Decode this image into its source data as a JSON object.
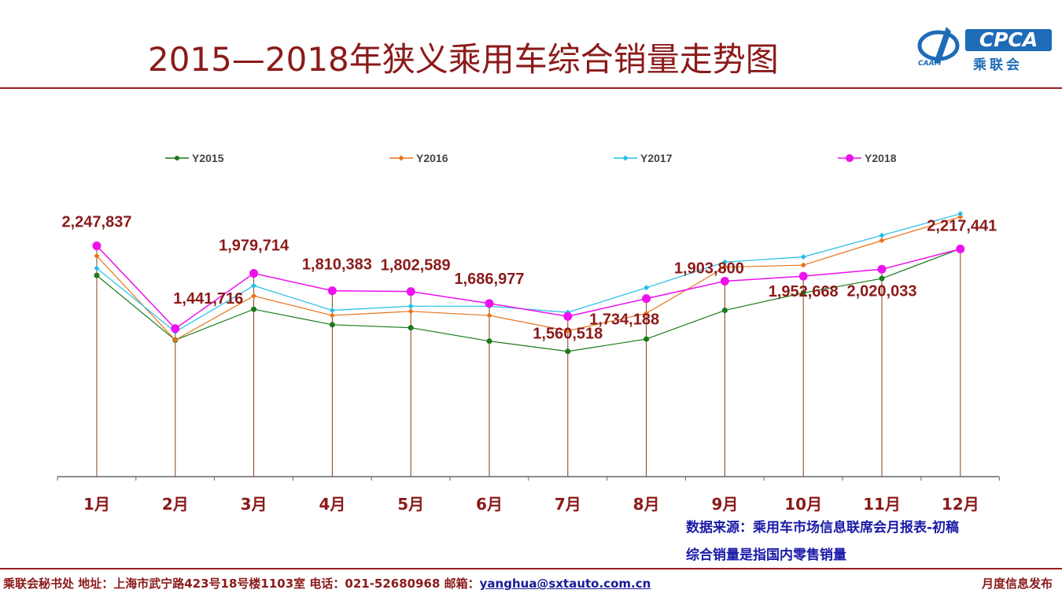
{
  "header": {
    "title": "2015—2018年狭义乘用车综合销量走势图",
    "logo_text": "CPCA",
    "logo_cn": "乘联会",
    "logo_sub": "CAAM"
  },
  "chart_data": {
    "type": "line",
    "categories": [
      "1月",
      "2月",
      "3月",
      "4月",
      "5月",
      "6月",
      "7月",
      "8月",
      "9月",
      "10月",
      "11月",
      "12月"
    ],
    "ylim": [
      0,
      2750000
    ],
    "grid": false,
    "legend_position": "top",
    "series": [
      {
        "name": "Y2015",
        "color": "#1a7a1a",
        "marker": "circle",
        "values": [
          1960000,
          1330000,
          1630000,
          1480000,
          1450000,
          1320000,
          1220000,
          1340000,
          1620000,
          1790000,
          1930000,
          2220000
        ]
      },
      {
        "name": "Y2016",
        "color": "#e8731a",
        "marker": "diamond",
        "values": [
          2150000,
          1330000,
          1760000,
          1570000,
          1610000,
          1570000,
          1420000,
          1590000,
          2040000,
          2060000,
          2300000,
          2530000
        ]
      },
      {
        "name": "Y2017",
        "color": "#22bde8",
        "marker": "diamond",
        "values": [
          2030000,
          1410000,
          1860000,
          1620000,
          1660000,
          1660000,
          1600000,
          1840000,
          2090000,
          2140000,
          2350000,
          2560000
        ]
      },
      {
        "name": "Y2018",
        "color": "#ee11ee",
        "marker": "circle",
        "values": [
          2247837,
          1441716,
          1979714,
          1810383,
          1802589,
          1686977,
          1560518,
          1734188,
          1903800,
          1952668,
          2020033,
          2217441
        ]
      }
    ],
    "data_labels": [
      "2,247,837",
      "1,441,716",
      "1,979,714",
      "1,810,383",
      "1,802,589",
      "1,686,977",
      "1,560,518",
      "1,734,188",
      "1,903,800",
      "1,952,668",
      "2,020,033",
      "2,217,441"
    ],
    "label_color": "#8b1a1a",
    "drop_line_color": "#8b3a1a",
    "axis_color": "#666666"
  },
  "notes": {
    "source": "数据来源：乘用车市场信息联席会月报表-初稿",
    "definition": "综合销量是指国内零售销量"
  },
  "footer": {
    "org_info": "乘联会秘书处  地址：上海市武宁路423号18号楼1103室  电话：021-52680968  邮箱：",
    "email": "yanghua@sxtauto.com.cn",
    "right_text": "月度信息发布"
  }
}
